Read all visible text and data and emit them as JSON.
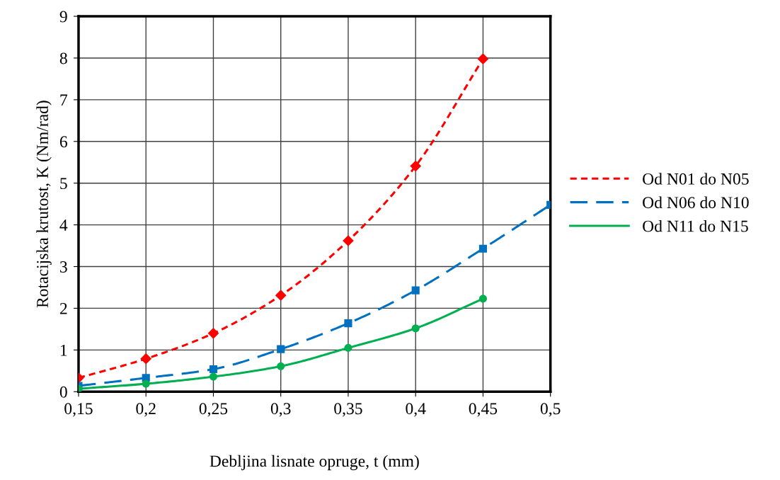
{
  "chart_data": {
    "type": "line",
    "xlabel": "Debljina lisnate opruge, t (mm)",
    "ylabel": "Rotacijska krutost, K (Nm/rad)",
    "xlim": [
      0.15,
      0.5
    ],
    "ylim": [
      0,
      9
    ],
    "xticks": [
      {
        "value": 0.15,
        "label": "0,15"
      },
      {
        "value": 0.2,
        "label": "0,2"
      },
      {
        "value": 0.25,
        "label": "0,25"
      },
      {
        "value": 0.3,
        "label": "0,3"
      },
      {
        "value": 0.35,
        "label": "0,35"
      },
      {
        "value": 0.4,
        "label": "0,4"
      },
      {
        "value": 0.45,
        "label": "0,45"
      },
      {
        "value": 0.5,
        "label": "0,5"
      }
    ],
    "yticks": [
      0,
      1,
      2,
      3,
      4,
      5,
      6,
      7,
      8,
      9
    ],
    "grid": true,
    "legend": "right",
    "series": [
      {
        "name": "Od N01 do N05",
        "color": "#ff0000",
        "marker": "diamond",
        "line_style": "dotted",
        "x": [
          0.15,
          0.2,
          0.25,
          0.3,
          0.35,
          0.4,
          0.45
        ],
        "values": [
          0.33,
          0.79,
          1.4,
          2.31,
          3.62,
          5.41,
          7.98
        ]
      },
      {
        "name": "Od N06 do N10",
        "color": "#0070c0",
        "marker": "square",
        "line_style": "dashed",
        "x": [
          0.15,
          0.2,
          0.25,
          0.3,
          0.35,
          0.4,
          0.45,
          0.5
        ],
        "values": [
          0.14,
          0.33,
          0.54,
          1.02,
          1.64,
          2.43,
          3.43,
          4.48
        ]
      },
      {
        "name": "Od N11 do N15",
        "color": "#00b050",
        "marker": "circle",
        "line_style": "solid",
        "x": [
          0.15,
          0.2,
          0.25,
          0.3,
          0.35,
          0.4,
          0.45
        ],
        "values": [
          0.07,
          0.19,
          0.36,
          0.61,
          1.05,
          1.52,
          2.23
        ]
      }
    ]
  }
}
